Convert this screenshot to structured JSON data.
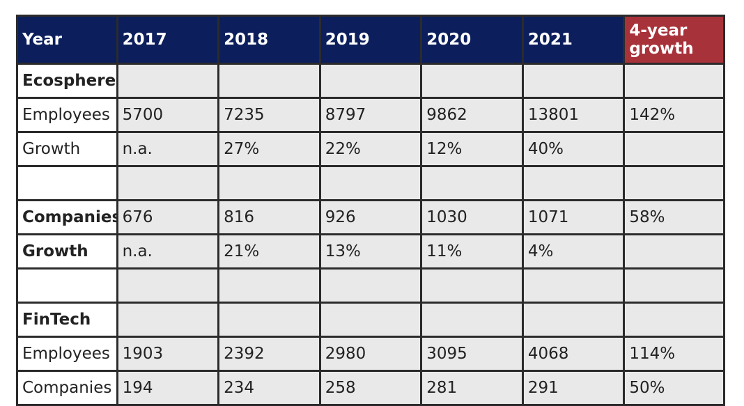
{
  "header": {
    "year_label": "Year",
    "years": [
      "2017",
      "2018",
      "2019",
      "2020",
      "2021"
    ],
    "growth_label": "4-year growth"
  },
  "colors": {
    "header_bg": "#0c1f5c",
    "growth_header_bg": "#a8323a",
    "cell_bg": "#e9e9e9"
  },
  "rows": [
    {
      "label": "Ecosphere",
      "bold": true,
      "values": [
        "",
        "",
        "",
        "",
        "",
        ""
      ]
    },
    {
      "label": "Employees",
      "bold": false,
      "values": [
        "5700",
        "7235",
        "8797",
        "9862",
        "13801",
        "142%"
      ]
    },
    {
      "label": "Growth",
      "bold": false,
      "values": [
        "n.a.",
        "27%",
        "22%",
        "12%",
        "40%",
        ""
      ]
    },
    {
      "label": "",
      "bold": false,
      "values": [
        "",
        "",
        "",
        "",
        "",
        ""
      ]
    },
    {
      "label": "Companies",
      "bold": true,
      "values": [
        "676",
        "816",
        "926",
        "1030",
        "1071",
        "58%"
      ]
    },
    {
      "label": "Growth",
      "bold": true,
      "values": [
        "n.a.",
        "21%",
        "13%",
        "11%",
        "4%",
        ""
      ]
    },
    {
      "label": "",
      "bold": false,
      "values": [
        "",
        "",
        "",
        "",
        "",
        ""
      ]
    },
    {
      "label": "FinTech",
      "bold": true,
      "values": [
        "",
        "",
        "",
        "",
        "",
        ""
      ]
    },
    {
      "label": "Employees",
      "bold": false,
      "values": [
        "1903",
        "2392",
        "2980",
        "3095",
        "4068",
        "114%"
      ]
    },
    {
      "label": "Companies",
      "bold": false,
      "values": [
        "194",
        "234",
        "258",
        "281",
        "291",
        "50%"
      ]
    }
  ]
}
